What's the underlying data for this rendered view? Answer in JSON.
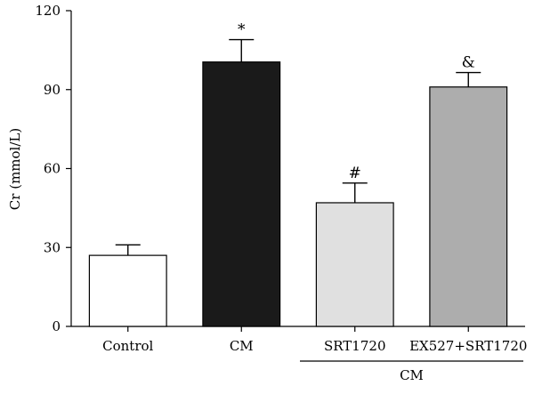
{
  "chart_data": {
    "type": "bar",
    "ylabel": "Cr (mmol/L)",
    "ylim": [
      0,
      120
    ],
    "yticks": [
      0,
      30,
      60,
      90,
      120
    ],
    "categories": [
      "Control",
      "CM",
      "SRT1720",
      "EX527+SRT1720"
    ],
    "values": [
      27,
      100.5,
      47,
      91
    ],
    "errors": [
      4,
      8.5,
      7.5,
      5.5
    ],
    "annotations": [
      "",
      "*",
      "#",
      "&"
    ],
    "colors": [
      "#ffffff",
      "#1a1a1a",
      "#e0e0e0",
      "#adadad"
    ],
    "group_label": {
      "text": "CM",
      "spans": [
        "SRT1720",
        "EX527+SRT1720"
      ]
    }
  }
}
